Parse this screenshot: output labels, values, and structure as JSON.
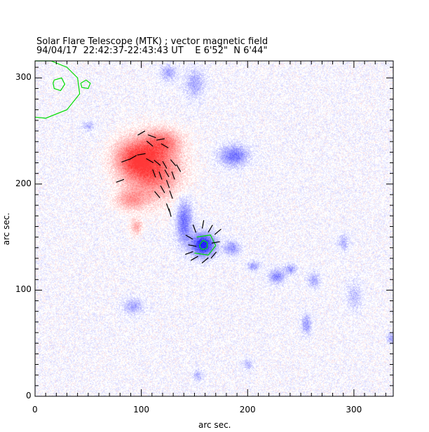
{
  "chart_data": {
    "type": "heatmap",
    "title": "Solar Flare Telescope (MTK) ; vector magnetic field",
    "subtitle": "94/04/17  22:42:37-22:43:43 UT    E 6'52\"  N 6'44\"",
    "xlabel": "arc sec.",
    "ylabel": "arc sec.",
    "xlim": [
      0,
      337
    ],
    "ylim": [
      0,
      316
    ],
    "xticks": [
      0,
      100,
      200,
      300
    ],
    "yticks": [
      0,
      100,
      200,
      300
    ],
    "xtick_labels": [
      "0",
      "100",
      "200",
      "300"
    ],
    "ytick_labels": [
      "0",
      "100",
      "200",
      "300"
    ],
    "colors": {
      "positive": "#ff3030",
      "negative": "#2020ff",
      "contour": "#00dd00",
      "vector": "#000000"
    },
    "regions": [
      {
        "polarity": "positive",
        "x": 110,
        "y": 215,
        "rx": 28,
        "ry": 30,
        "strength": 0.85
      },
      {
        "polarity": "positive",
        "x": 92,
        "y": 225,
        "rx": 20,
        "ry": 18,
        "strength": 0.6
      },
      {
        "polarity": "positive",
        "x": 120,
        "y": 240,
        "rx": 18,
        "ry": 12,
        "strength": 0.5
      },
      {
        "polarity": "positive",
        "x": 90,
        "y": 185,
        "rx": 15,
        "ry": 10,
        "strength": 0.45
      },
      {
        "polarity": "positive",
        "x": 95,
        "y": 160,
        "rx": 6,
        "ry": 8,
        "strength": 0.4
      },
      {
        "polarity": "negative",
        "x": 158,
        "y": 143,
        "rx": 12,
        "ry": 12,
        "strength": 1.0
      },
      {
        "polarity": "negative",
        "x": 140,
        "y": 165,
        "rx": 8,
        "ry": 22,
        "strength": 0.6
      },
      {
        "polarity": "negative",
        "x": 187,
        "y": 227,
        "rx": 14,
        "ry": 10,
        "strength": 0.6
      },
      {
        "polarity": "negative",
        "x": 185,
        "y": 140,
        "rx": 8,
        "ry": 7,
        "strength": 0.45
      },
      {
        "polarity": "negative",
        "x": 227,
        "y": 113,
        "rx": 8,
        "ry": 7,
        "strength": 0.5
      },
      {
        "polarity": "negative",
        "x": 240,
        "y": 120,
        "rx": 6,
        "ry": 5,
        "strength": 0.4
      },
      {
        "polarity": "negative",
        "x": 205,
        "y": 123,
        "rx": 6,
        "ry": 5,
        "strength": 0.4
      },
      {
        "polarity": "negative",
        "x": 150,
        "y": 295,
        "rx": 10,
        "ry": 14,
        "strength": 0.35
      },
      {
        "polarity": "negative",
        "x": 125,
        "y": 305,
        "rx": 8,
        "ry": 8,
        "strength": 0.35
      },
      {
        "polarity": "negative",
        "x": 92,
        "y": 85,
        "rx": 10,
        "ry": 8,
        "strength": 0.35
      },
      {
        "polarity": "negative",
        "x": 255,
        "y": 68,
        "rx": 5,
        "ry": 10,
        "strength": 0.4
      },
      {
        "polarity": "negative",
        "x": 262,
        "y": 110,
        "rx": 6,
        "ry": 8,
        "strength": 0.35
      },
      {
        "polarity": "negative",
        "x": 50,
        "y": 255,
        "rx": 6,
        "ry": 5,
        "strength": 0.3
      },
      {
        "polarity": "negative",
        "x": 290,
        "y": 145,
        "rx": 6,
        "ry": 8,
        "strength": 0.3
      },
      {
        "polarity": "negative",
        "x": 200,
        "y": 30,
        "rx": 5,
        "ry": 5,
        "strength": 0.3
      },
      {
        "polarity": "negative",
        "x": 153,
        "y": 20,
        "rx": 5,
        "ry": 6,
        "strength": 0.3
      },
      {
        "polarity": "negative",
        "x": 335,
        "y": 55,
        "rx": 4,
        "ry": 5,
        "strength": 0.4
      },
      {
        "polarity": "negative",
        "x": 300,
        "y": 95,
        "rx": 8,
        "ry": 14,
        "strength": 0.25
      }
    ],
    "contours": [
      {
        "points": [
          [
            0,
            316
          ],
          [
            15,
            316
          ],
          [
            30,
            310
          ],
          [
            40,
            300
          ],
          [
            42,
            285
          ],
          [
            30,
            270
          ],
          [
            10,
            262
          ],
          [
            0,
            263
          ]
        ]
      },
      {
        "points": [
          [
            18,
            298
          ],
          [
            25,
            300
          ],
          [
            28,
            294
          ],
          [
            24,
            288
          ],
          [
            18,
            290
          ],
          [
            17,
            295
          ],
          [
            18,
            298
          ]
        ]
      },
      {
        "points": [
          [
            43,
            295
          ],
          [
            48,
            298
          ],
          [
            52,
            295
          ],
          [
            50,
            290
          ],
          [
            44,
            291
          ],
          [
            43,
            295
          ]
        ]
      },
      {
        "points": [
          [
            155,
            143
          ],
          [
            158,
            147
          ],
          [
            162,
            145
          ],
          [
            162,
            140
          ],
          [
            158,
            138
          ],
          [
            155,
            140
          ],
          [
            155,
            143
          ]
        ]
      },
      {
        "points": [
          [
            150,
            135
          ],
          [
            163,
            133
          ],
          [
            170,
            142
          ],
          [
            165,
            152
          ],
          [
            152,
            150
          ]
        ]
      }
    ],
    "vectors": [
      [
        100,
        248,
        30
      ],
      [
        110,
        245,
        -20
      ],
      [
        118,
        242,
        10
      ],
      [
        122,
        236,
        -30
      ],
      [
        108,
        238,
        -40
      ],
      [
        85,
        222,
        20
      ],
      [
        92,
        225,
        30
      ],
      [
        100,
        228,
        10
      ],
      [
        108,
        222,
        -30
      ],
      [
        115,
        220,
        -40
      ],
      [
        122,
        218,
        -60
      ],
      [
        130,
        220,
        -50
      ],
      [
        135,
        215,
        -60
      ],
      [
        112,
        210,
        -70
      ],
      [
        118,
        208,
        -70
      ],
      [
        124,
        210,
        -60
      ],
      [
        130,
        208,
        -70
      ],
      [
        125,
        200,
        -70
      ],
      [
        120,
        195,
        -60
      ],
      [
        115,
        190,
        -50
      ],
      [
        128,
        190,
        -70
      ],
      [
        80,
        203,
        20
      ],
      [
        125,
        178,
        -70
      ],
      [
        127,
        173,
        -75
      ],
      [
        150,
        158,
        -70
      ],
      [
        158,
        162,
        80
      ],
      [
        165,
        158,
        60
      ],
      [
        172,
        155,
        40
      ],
      [
        145,
        150,
        -30
      ],
      [
        148,
        142,
        -10
      ],
      [
        170,
        145,
        10
      ],
      [
        145,
        135,
        20
      ],
      [
        150,
        130,
        30
      ],
      [
        160,
        128,
        40
      ],
      [
        168,
        133,
        50
      ]
    ]
  }
}
